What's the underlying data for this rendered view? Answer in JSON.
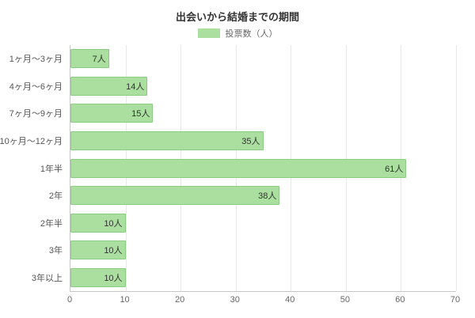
{
  "chart": {
    "legend_label": "投票数（人）",
    "colors": {
      "bar_fill": "#aadf9f",
      "bar_border": "#8ccb83",
      "grid": "#e8e8e8",
      "axis": "#c6c6c6"
    }
  },
  "chart_data": {
    "type": "bar",
    "orientation": "horizontal",
    "title": "出会いから結婚までの期間",
    "legend": [
      "投票数（人）"
    ],
    "legend_position": "top",
    "categories": [
      "1ヶ月～3ヶ月",
      "4ヶ月～6ヶ月",
      "7ヶ月～9ヶ月",
      "10ヶ月～12ヶ月",
      "1年半",
      "2年",
      "2年半",
      "3年",
      "3年以上"
    ],
    "values": [
      7,
      14,
      15,
      35,
      61,
      38,
      10,
      10,
      10
    ],
    "value_labels": [
      "7人",
      "14人",
      "15人",
      "35人",
      "61人",
      "38人",
      "10人",
      "10人",
      "10人"
    ],
    "xlabel": "",
    "ylabel": "",
    "xlim": [
      0,
      70
    ],
    "xticks": [
      0,
      10,
      20,
      30,
      40,
      50,
      60,
      70
    ],
    "grid": true
  }
}
